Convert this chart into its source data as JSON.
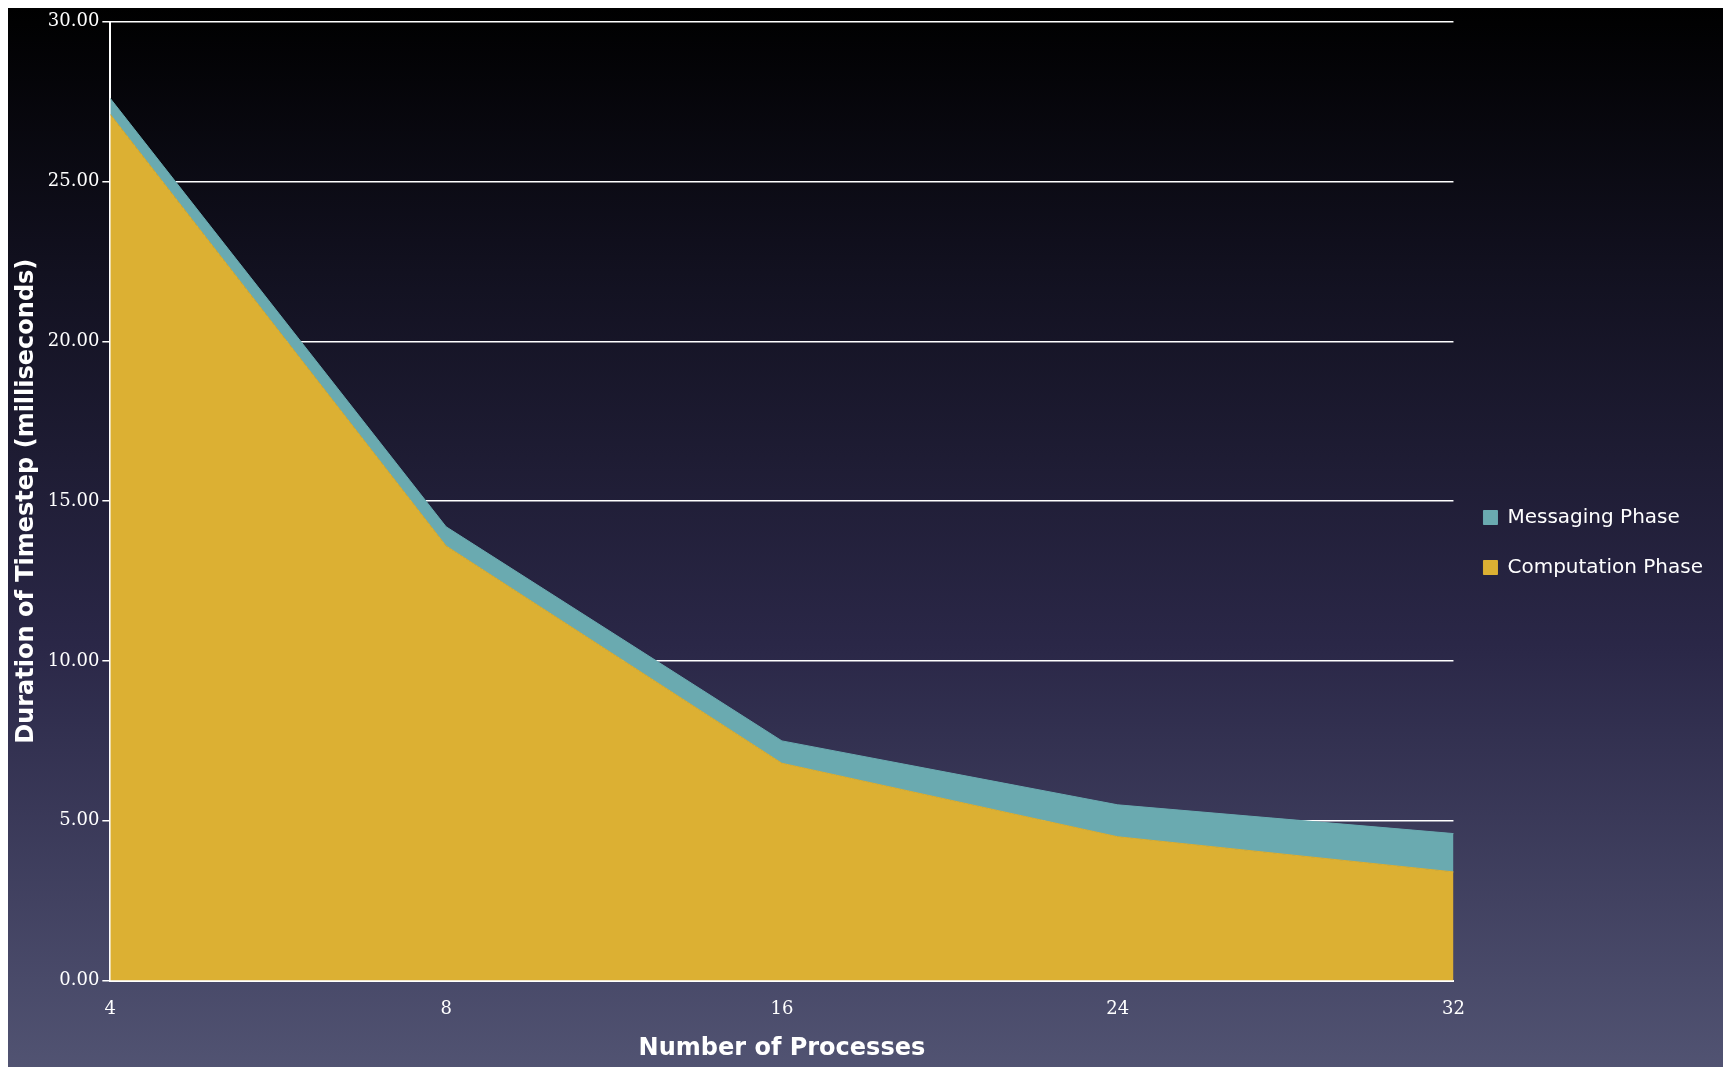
{
  "chart_data": {
    "type": "area",
    "xlabel": "Number of Processes",
    "ylabel": "Duration of Timestep (milliseconds)",
    "categories": [
      "4",
      "8",
      "16",
      "24",
      "32"
    ],
    "series": [
      {
        "name": "Computation Phase",
        "color": "#dcb033",
        "values": [
          27.1,
          13.6,
          6.8,
          4.5,
          3.4
        ]
      },
      {
        "name": "Messaging Phase",
        "color": "#6aaab0",
        "values": [
          0.5,
          0.6,
          0.7,
          1.0,
          1.2
        ]
      }
    ],
    "stacked": true,
    "ylim": [
      0,
      30
    ],
    "yticks": [
      {
        "value": 0,
        "label": "0.00"
      },
      {
        "value": 5,
        "label": "5.00"
      },
      {
        "value": 10,
        "label": "10.00"
      },
      {
        "value": 15,
        "label": "15.00"
      },
      {
        "value": 20,
        "label": "20.00"
      },
      {
        "value": 25,
        "label": "25.00"
      },
      {
        "value": 30,
        "label": "30.00"
      }
    ],
    "grid": "y",
    "legend": "right"
  }
}
